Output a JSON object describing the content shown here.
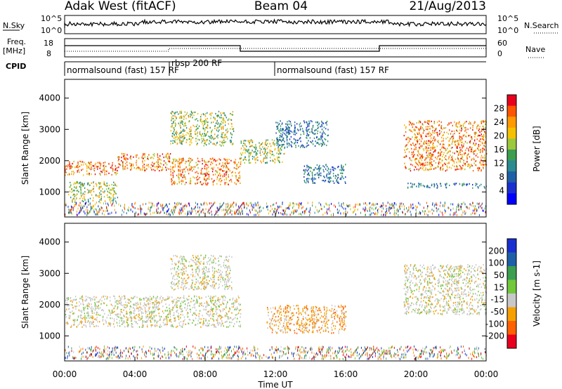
{
  "header": {
    "station": "Adak West (fitACF)",
    "beam": "Beam 04",
    "date": "21/Aug/2013"
  },
  "panels": {
    "nsky": {
      "left_label": "N.Sky",
      "right_label": "N.Search",
      "left_ticks": [
        "10^5",
        "10^0"
      ],
      "right_ticks": [
        "10^5",
        "10^0"
      ]
    },
    "freq": {
      "left_label": "Freq.",
      "left_unit": "[MHz]",
      "right_label": "Nave",
      "left_ticks": [
        "18",
        "8"
      ],
      "right_ticks": [
        "60",
        "0"
      ]
    },
    "cpid": {
      "label": "CPID",
      "segments": [
        "normalsound (fast) 157 RF",
        "rbsp 200 RF",
        "normalsound (fast) 157 RF"
      ]
    }
  },
  "chart_data": [
    {
      "type": "heatmap",
      "name": "power",
      "ylabel": "Slant Range [km]",
      "xlabel": "",
      "ylim": [
        200,
        4600
      ],
      "x_ticks": [
        "00:00",
        "04:00",
        "08:00",
        "12:00",
        "16:00",
        "20:00",
        "00:00"
      ],
      "y_ticks": [
        1000,
        2000,
        3000,
        4000
      ],
      "colorbar": {
        "label": "Power [dB]",
        "ticks": [
          "28",
          "24",
          "20",
          "16",
          "12",
          "8",
          "4"
        ],
        "colors": [
          "#e8001c",
          "#ff5500",
          "#ff9a00",
          "#f5c000",
          "#9bc83c",
          "#3c9e50",
          "#2c8a90",
          "#1f5fa8",
          "#1a2fd0",
          "#0000ff"
        ]
      },
      "echo_bands": [
        {
          "t_start_h": 0.0,
          "t_end_h": 3.0,
          "range_km": [
            1550,
            2000
          ],
          "level": "strong"
        },
        {
          "t_start_h": 3.0,
          "t_end_h": 6.0,
          "range_km": [
            1700,
            2250
          ],
          "level": "strong"
        },
        {
          "t_start_h": 6.0,
          "t_end_h": 10.0,
          "range_km": [
            1250,
            2100
          ],
          "level": "strong"
        },
        {
          "t_start_h": 6.0,
          "t_end_h": 9.6,
          "range_km": [
            2500,
            3600
          ],
          "level": "medium"
        },
        {
          "t_start_h": 10.0,
          "t_end_h": 12.5,
          "range_km": [
            1950,
            2700
          ],
          "level": "medium"
        },
        {
          "t_start_h": 12.0,
          "t_end_h": 15.0,
          "range_km": [
            2450,
            3300
          ],
          "level": "weak"
        },
        {
          "t_start_h": 13.5,
          "t_end_h": 16.0,
          "range_km": [
            1300,
            1900
          ],
          "level": "weak"
        },
        {
          "t_start_h": 0.2,
          "t_end_h": 3.0,
          "range_km": [
            700,
            1350
          ],
          "level": "medium"
        },
        {
          "t_start_h": 19.3,
          "t_end_h": 24.0,
          "range_km": [
            1700,
            3300
          ],
          "level": "strong"
        },
        {
          "t_start_h": 19.5,
          "t_end_h": 24.0,
          "range_km": [
            1150,
            1300
          ],
          "level": "weak"
        }
      ]
    },
    {
      "type": "heatmap",
      "name": "velocity",
      "ylabel": "Slant Range [km]",
      "xlabel": "Time UT",
      "ylim": [
        200,
        4600
      ],
      "x_ticks": [
        "00:00",
        "04:00",
        "08:00",
        "12:00",
        "16:00",
        "20:00",
        "00:00"
      ],
      "y_ticks": [
        1000,
        2000,
        3000,
        4000
      ],
      "colorbar": {
        "label": "Velocity [m s-1]",
        "ticks": [
          "200",
          "100",
          "50",
          "15",
          "-15",
          "-50",
          "-100",
          "-200"
        ],
        "colors": [
          "#1a2fd0",
          "#1f5fa8",
          "#3c9e50",
          "#72c83c",
          "#c8c8c8",
          "#f5a000",
          "#ff6000",
          "#e8001c"
        ]
      },
      "echo_bands": [
        {
          "t_start_h": 0.0,
          "t_end_h": 10.0,
          "range_km": [
            1300,
            2300
          ],
          "level": "grey"
        },
        {
          "t_start_h": 6.0,
          "t_end_h": 9.5,
          "range_km": [
            2500,
            3600
          ],
          "level": "grey"
        },
        {
          "t_start_h": 11.5,
          "t_end_h": 16.0,
          "range_km": [
            1100,
            2000
          ],
          "level": "orange"
        },
        {
          "t_start_h": 19.3,
          "t_end_h": 24.0,
          "range_km": [
            1700,
            3300
          ],
          "level": "grey"
        }
      ]
    }
  ]
}
